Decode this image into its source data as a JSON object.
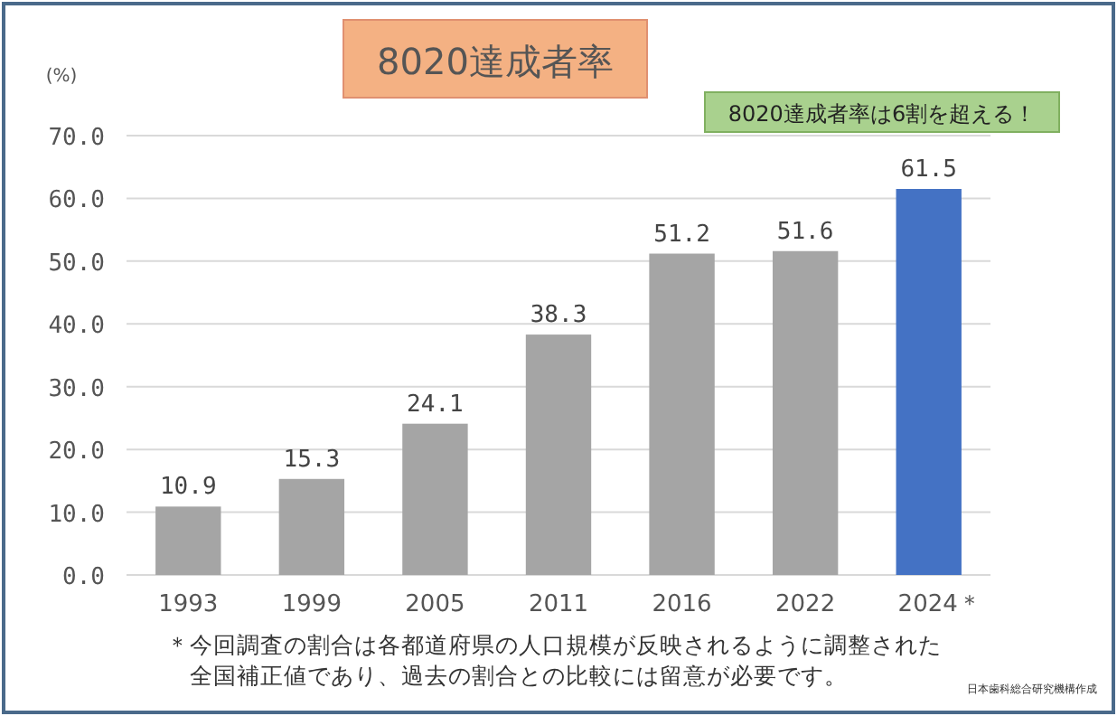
{
  "chart_data": {
    "type": "bar",
    "title": "8020達成者率",
    "ylabel": "(%)",
    "categories": [
      "1993",
      "1999",
      "2005",
      "2011",
      "2016",
      "2022",
      "2024＊"
    ],
    "values": [
      10.9,
      15.3,
      24.1,
      38.3,
      51.2,
      51.6,
      61.5
    ],
    "colors": [
      "#a5a5a5",
      "#a5a5a5",
      "#a5a5a5",
      "#a5a5a5",
      "#a5a5a5",
      "#a5a5a5",
      "#4472c4"
    ],
    "ylim": [
      0,
      70
    ],
    "yticks": [
      {
        "value": 0,
        "label": "0.0"
      },
      {
        "value": 10,
        "label": "10.0"
      },
      {
        "value": 20,
        "label": "20.0"
      },
      {
        "value": 30,
        "label": "30.0"
      },
      {
        "value": 40,
        "label": "40.0"
      },
      {
        "value": 50,
        "label": "50.0"
      },
      {
        "value": 60,
        "label": "60.0"
      },
      {
        "value": 70,
        "label": "70.0"
      }
    ],
    "grid": "y",
    "data_labels": true,
    "annotations": [
      "8020達成者率は6割を超える！",
      "＊今回調査の割合は各都道府県の人口規模が反映されるように調整された全国補正値であり、過去の割合との比較には留意が必要です。",
      "日本歯科総合研究機構作成"
    ]
  }
}
